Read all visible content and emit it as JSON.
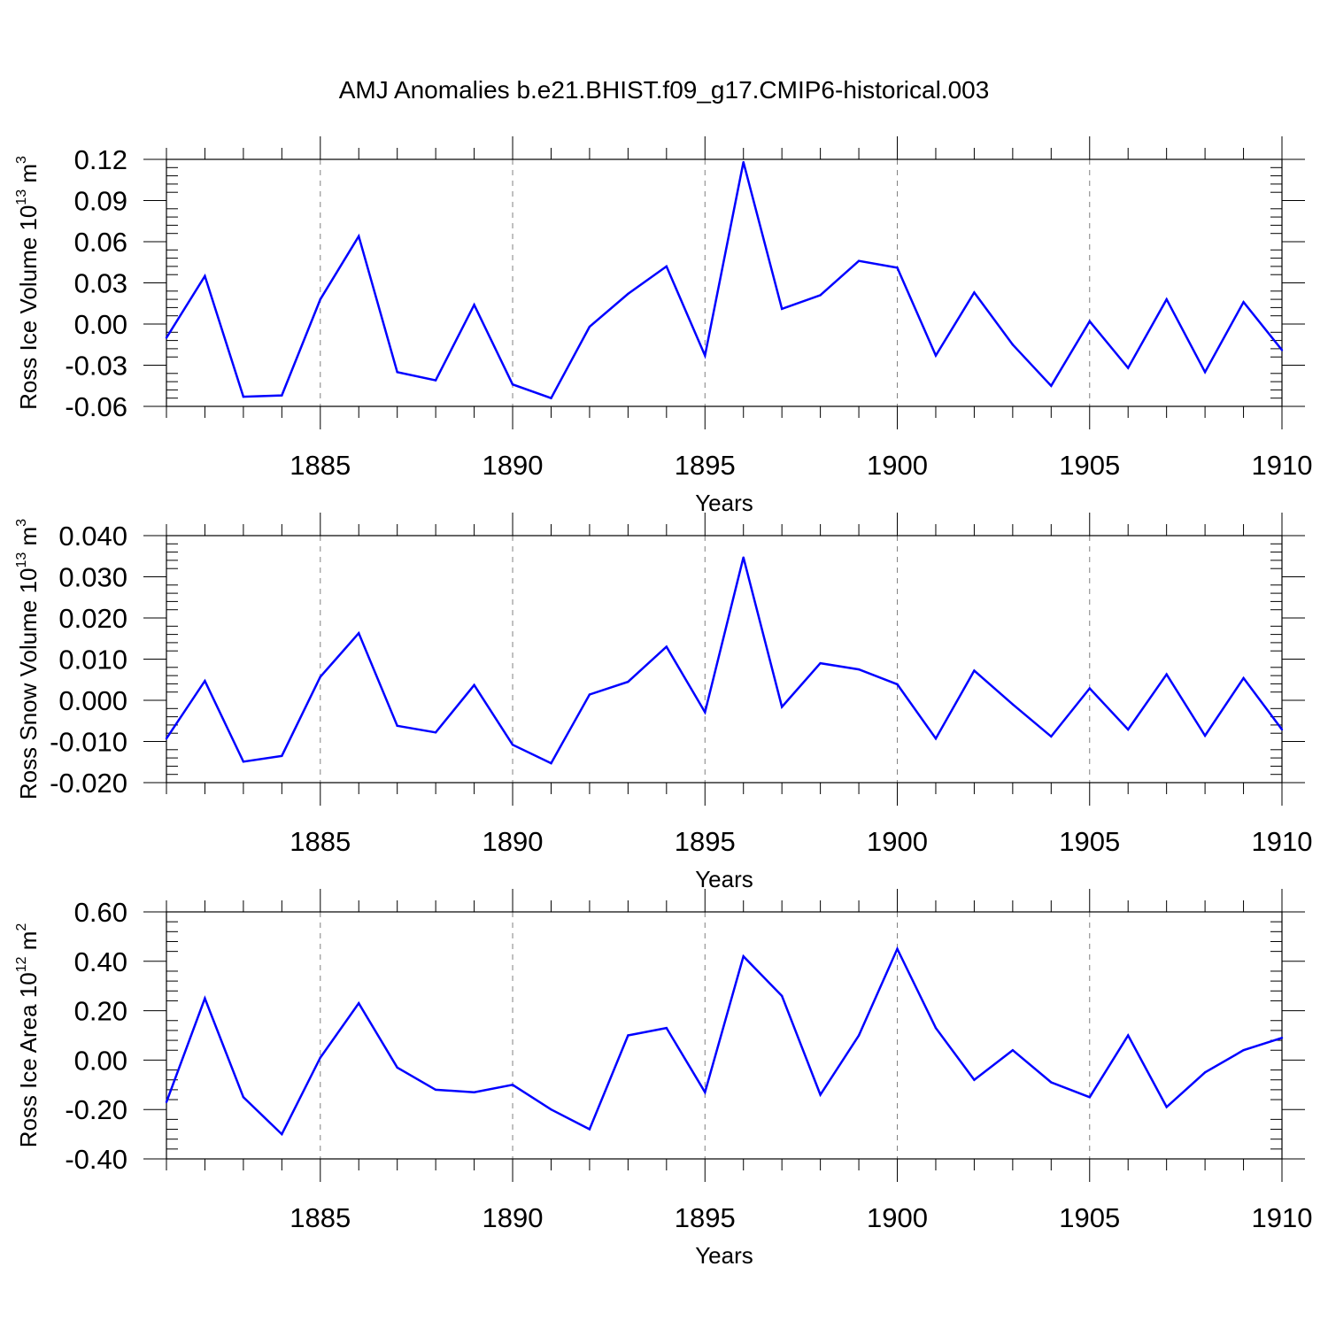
{
  "title": "AMJ Anomalies b.e21.BHIST.f09_g17.CMIP6-historical.003",
  "colors": {
    "line": "#0000ff",
    "axis": "#000000",
    "grid": "#808080"
  },
  "chart_data": [
    {
      "type": "line",
      "ylabel": "Ross Ice Volume",
      "yunit_base": "10",
      "yunit_exp": "13",
      "yunit_tail": "m",
      "yunit_tail_exp": "3",
      "xlabel": "Years",
      "xlim": [
        1881,
        1910
      ],
      "ylim": [
        -0.06,
        0.12
      ],
      "yticks": [
        -0.06,
        -0.03,
        0.0,
        0.03,
        0.06,
        0.09,
        0.12
      ],
      "ytick_labels": [
        "-0.06",
        "-0.03",
        "0.00",
        "0.03",
        "0.06",
        "0.09",
        "0.12"
      ],
      "xticks": [
        1885,
        1890,
        1895,
        1900,
        1905,
        1910
      ],
      "xtick_labels": [
        "1885",
        "1890",
        "1895",
        "1900",
        "1905",
        "1910"
      ],
      "x": [
        1881,
        1882,
        1883,
        1884,
        1885,
        1886,
        1887,
        1888,
        1889,
        1890,
        1891,
        1892,
        1893,
        1894,
        1895,
        1896,
        1897,
        1898,
        1899,
        1900,
        1901,
        1902,
        1903,
        1904,
        1905,
        1906,
        1907,
        1908,
        1909,
        1910
      ],
      "series": [
        {
          "values": [
            -0.01,
            0.035,
            -0.053,
            -0.052,
            0.018,
            0.064,
            -0.035,
            -0.041,
            0.014,
            -0.044,
            -0.054,
            -0.002,
            0.022,
            0.042,
            -0.023,
            0.118,
            0.011,
            0.021,
            0.046,
            0.041,
            -0.023,
            0.023,
            -0.015,
            -0.045,
            0.002,
            -0.032,
            0.018,
            -0.035,
            0.016,
            -0.019
          ]
        }
      ]
    },
    {
      "type": "line",
      "ylabel": "Ross Snow Volume",
      "yunit_base": "10",
      "yunit_exp": "13",
      "yunit_tail": "m",
      "yunit_tail_exp": "3",
      "xlabel": "Years",
      "xlim": [
        1881,
        1910
      ],
      "ylim": [
        -0.02,
        0.04
      ],
      "yticks": [
        -0.02,
        -0.01,
        0.0,
        0.01,
        0.02,
        0.03,
        0.04
      ],
      "ytick_labels": [
        "-0.020",
        "-0.010",
        "0.000",
        "0.010",
        "0.020",
        "0.030",
        "0.040"
      ],
      "xticks": [
        1885,
        1890,
        1895,
        1900,
        1905,
        1910
      ],
      "xtick_labels": [
        "1885",
        "1890",
        "1895",
        "1900",
        "1905",
        "1910"
      ],
      "x": [
        1881,
        1882,
        1883,
        1884,
        1885,
        1886,
        1887,
        1888,
        1889,
        1890,
        1891,
        1892,
        1893,
        1894,
        1895,
        1896,
        1897,
        1898,
        1899,
        1900,
        1901,
        1902,
        1903,
        1904,
        1905,
        1906,
        1907,
        1908,
        1909,
        1910
      ],
      "series": [
        {
          "values": [
            -0.0093,
            0.0047,
            -0.0149,
            -0.0135,
            0.0057,
            0.0163,
            -0.0062,
            -0.0078,
            0.0037,
            -0.0108,
            -0.0153,
            0.0014,
            0.0045,
            0.013,
            -0.0029,
            0.0347,
            -0.0016,
            0.009,
            0.0075,
            0.0039,
            -0.0093,
            0.0072,
            -0.001,
            -0.0088,
            0.0029,
            -0.0071,
            0.0063,
            -0.0086,
            0.0054,
            -0.0071
          ]
        }
      ]
    },
    {
      "type": "line",
      "ylabel": "Ross Ice Area",
      "yunit_base": "10",
      "yunit_exp": "12",
      "yunit_tail": "m",
      "yunit_tail_exp": "2",
      "xlabel": "Years",
      "xlim": [
        1881,
        1910
      ],
      "ylim": [
        -0.4,
        0.6
      ],
      "yticks": [
        -0.4,
        -0.2,
        0.0,
        0.2,
        0.4,
        0.6
      ],
      "ytick_labels": [
        "-0.40",
        "-0.20",
        "0.00",
        "0.20",
        "0.40",
        "0.60"
      ],
      "xticks": [
        1885,
        1890,
        1895,
        1900,
        1905,
        1910
      ],
      "xtick_labels": [
        "1885",
        "1890",
        "1895",
        "1900",
        "1905",
        "1910"
      ],
      "x": [
        1881,
        1882,
        1883,
        1884,
        1885,
        1886,
        1887,
        1888,
        1889,
        1890,
        1891,
        1892,
        1893,
        1894,
        1895,
        1896,
        1897,
        1898,
        1899,
        1900,
        1901,
        1902,
        1903,
        1904,
        1905,
        1906,
        1907,
        1908,
        1909,
        1910
      ],
      "series": [
        {
          "values": [
            -0.17,
            0.25,
            -0.15,
            -0.3,
            0.01,
            0.23,
            -0.03,
            -0.12,
            -0.13,
            -0.1,
            -0.2,
            -0.28,
            0.1,
            0.13,
            -0.13,
            0.42,
            0.26,
            -0.14,
            0.1,
            0.45,
            0.13,
            -0.08,
            0.04,
            -0.09,
            -0.15,
            0.1,
            -0.19,
            -0.05,
            0.04,
            0.09
          ]
        }
      ]
    }
  ]
}
